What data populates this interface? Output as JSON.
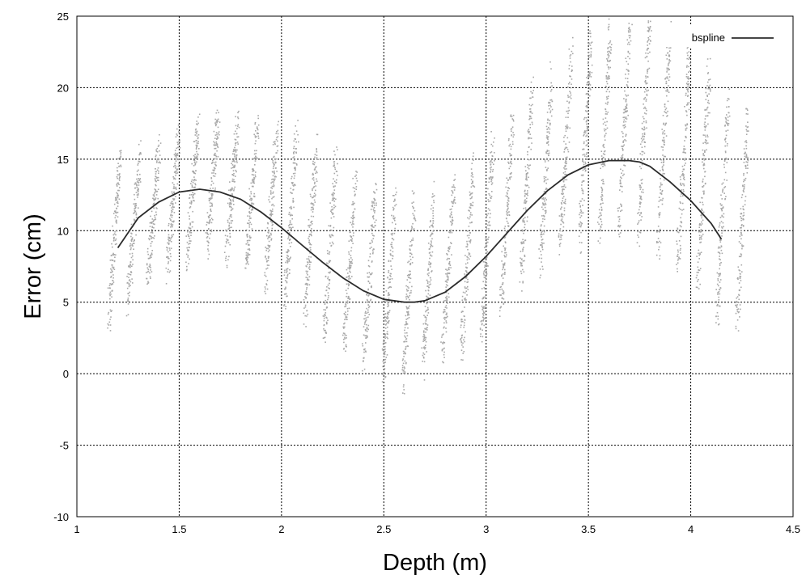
{
  "chart_data": {
    "type": "scatter",
    "title": "",
    "xlabel": "Depth (m)",
    "ylabel": "Error (cm)",
    "xlim": [
      1,
      4.5
    ],
    "ylim": [
      -10,
      25
    ],
    "x_ticks": [
      "1",
      "1.5",
      "2",
      "2.5",
      "3",
      "3.5",
      "4",
      "4.5"
    ],
    "x_tick_values": [
      1,
      1.5,
      2,
      2.5,
      3,
      3.5,
      4,
      4.5
    ],
    "y_ticks": [
      "-10",
      "-5",
      "0",
      "5",
      "10",
      "15",
      "20",
      "25"
    ],
    "y_tick_values": [
      -10,
      -5,
      0,
      5,
      10,
      15,
      20,
      25
    ],
    "grid": true,
    "legend_position": "top-right",
    "series": [
      {
        "name": "",
        "kind": "scatter",
        "color": "#a8a8a8",
        "x_range": [
          1.18,
          4.25
        ],
        "stripe_count": 33,
        "points_per_stripe": 150,
        "envelope": {
          "x": [
            1.18,
            1.4,
            1.6,
            1.8,
            2.0,
            2.2,
            2.4,
            2.6,
            2.8,
            3.0,
            3.2,
            3.4,
            3.6,
            3.8,
            4.0,
            4.2
          ],
          "low": [
            4,
            7,
            8.5,
            8,
            6,
            3.5,
            1,
            -0.5,
            1,
            3,
            6.5,
            9,
            10,
            10,
            7,
            3.5
          ],
          "high": [
            15,
            16,
            18,
            17.5,
            17,
            15.5,
            13,
            12,
            13,
            16,
            20,
            22.5,
            24.5,
            25,
            22,
            18.5
          ]
        }
      },
      {
        "name": "bspline",
        "kind": "line",
        "color": "#2b2b2b",
        "x": [
          1.2,
          1.3,
          1.4,
          1.5,
          1.6,
          1.7,
          1.8,
          1.9,
          2.0,
          2.1,
          2.2,
          2.3,
          2.4,
          2.5,
          2.6,
          2.65,
          2.7,
          2.8,
          2.9,
          3.0,
          3.1,
          3.2,
          3.3,
          3.4,
          3.5,
          3.6,
          3.7,
          3.75,
          3.8,
          3.9,
          4.0,
          4.1,
          4.15
        ],
        "y": [
          8.8,
          10.9,
          12.0,
          12.7,
          12.9,
          12.7,
          12.2,
          11.3,
          10.2,
          9.0,
          7.8,
          6.7,
          5.8,
          5.2,
          5.0,
          5.0,
          5.1,
          5.7,
          6.8,
          8.2,
          9.8,
          11.4,
          12.8,
          13.9,
          14.6,
          14.9,
          14.9,
          14.8,
          14.5,
          13.4,
          12.1,
          10.5,
          9.4
        ]
      }
    ]
  }
}
